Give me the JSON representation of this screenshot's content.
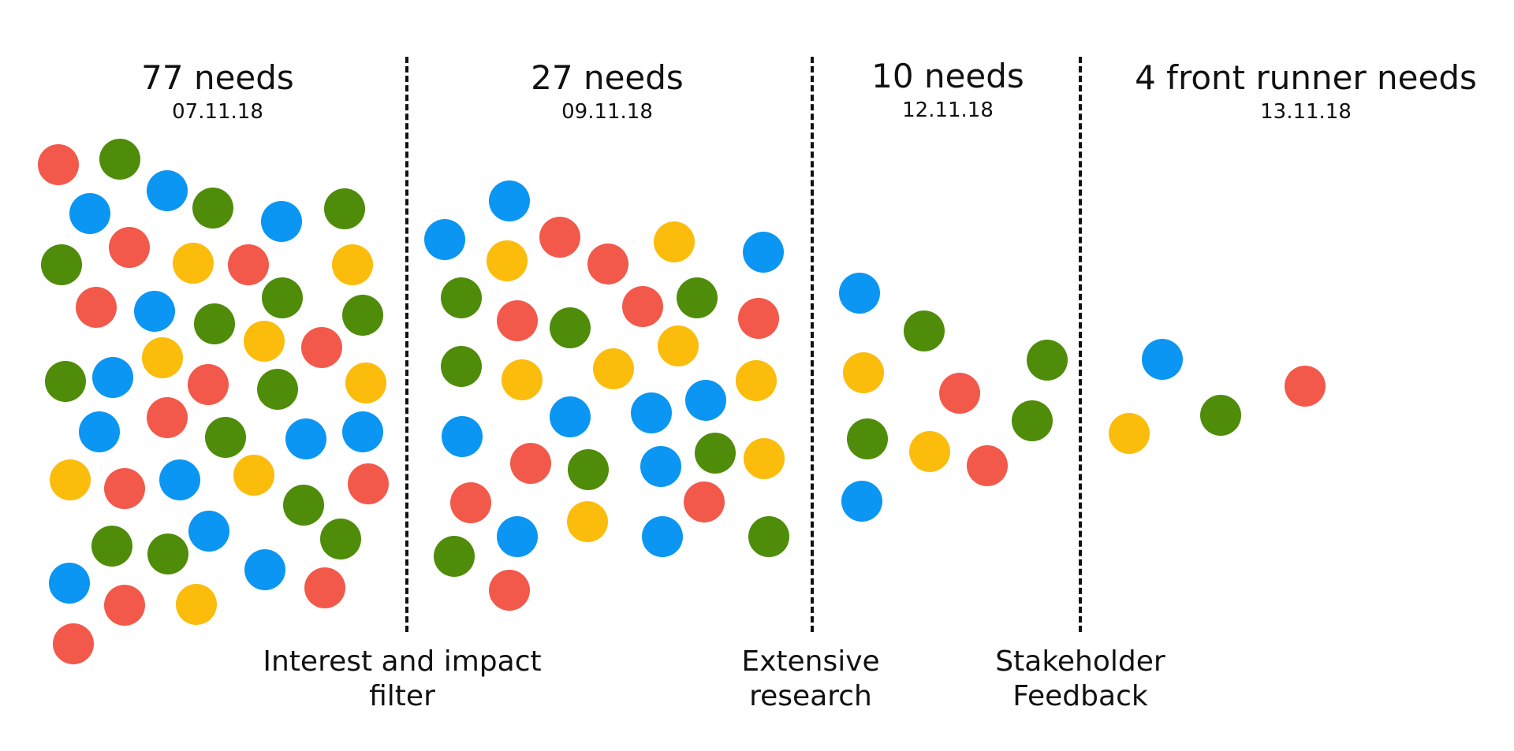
{
  "stages": [
    {
      "title": "77 needs",
      "date": "07.11.18"
    },
    {
      "title": "27 needs",
      "date": "09.11.18"
    },
    {
      "title": "10 needs",
      "date": "12.11.18"
    },
    {
      "title": "4 front runner needs",
      "date": "13.11.18"
    }
  ],
  "filters": [
    {
      "label": "Interest and impact\nfilter"
    },
    {
      "label": "Extensive\nresearch"
    },
    {
      "label": "Stakeholder\nFeedback"
    }
  ],
  "colors": {
    "red": "#f2594b",
    "green": "#4e8c0a",
    "blue": "#0a96f2",
    "yellow": "#fcbc0b",
    "divider": "#111111"
  }
}
